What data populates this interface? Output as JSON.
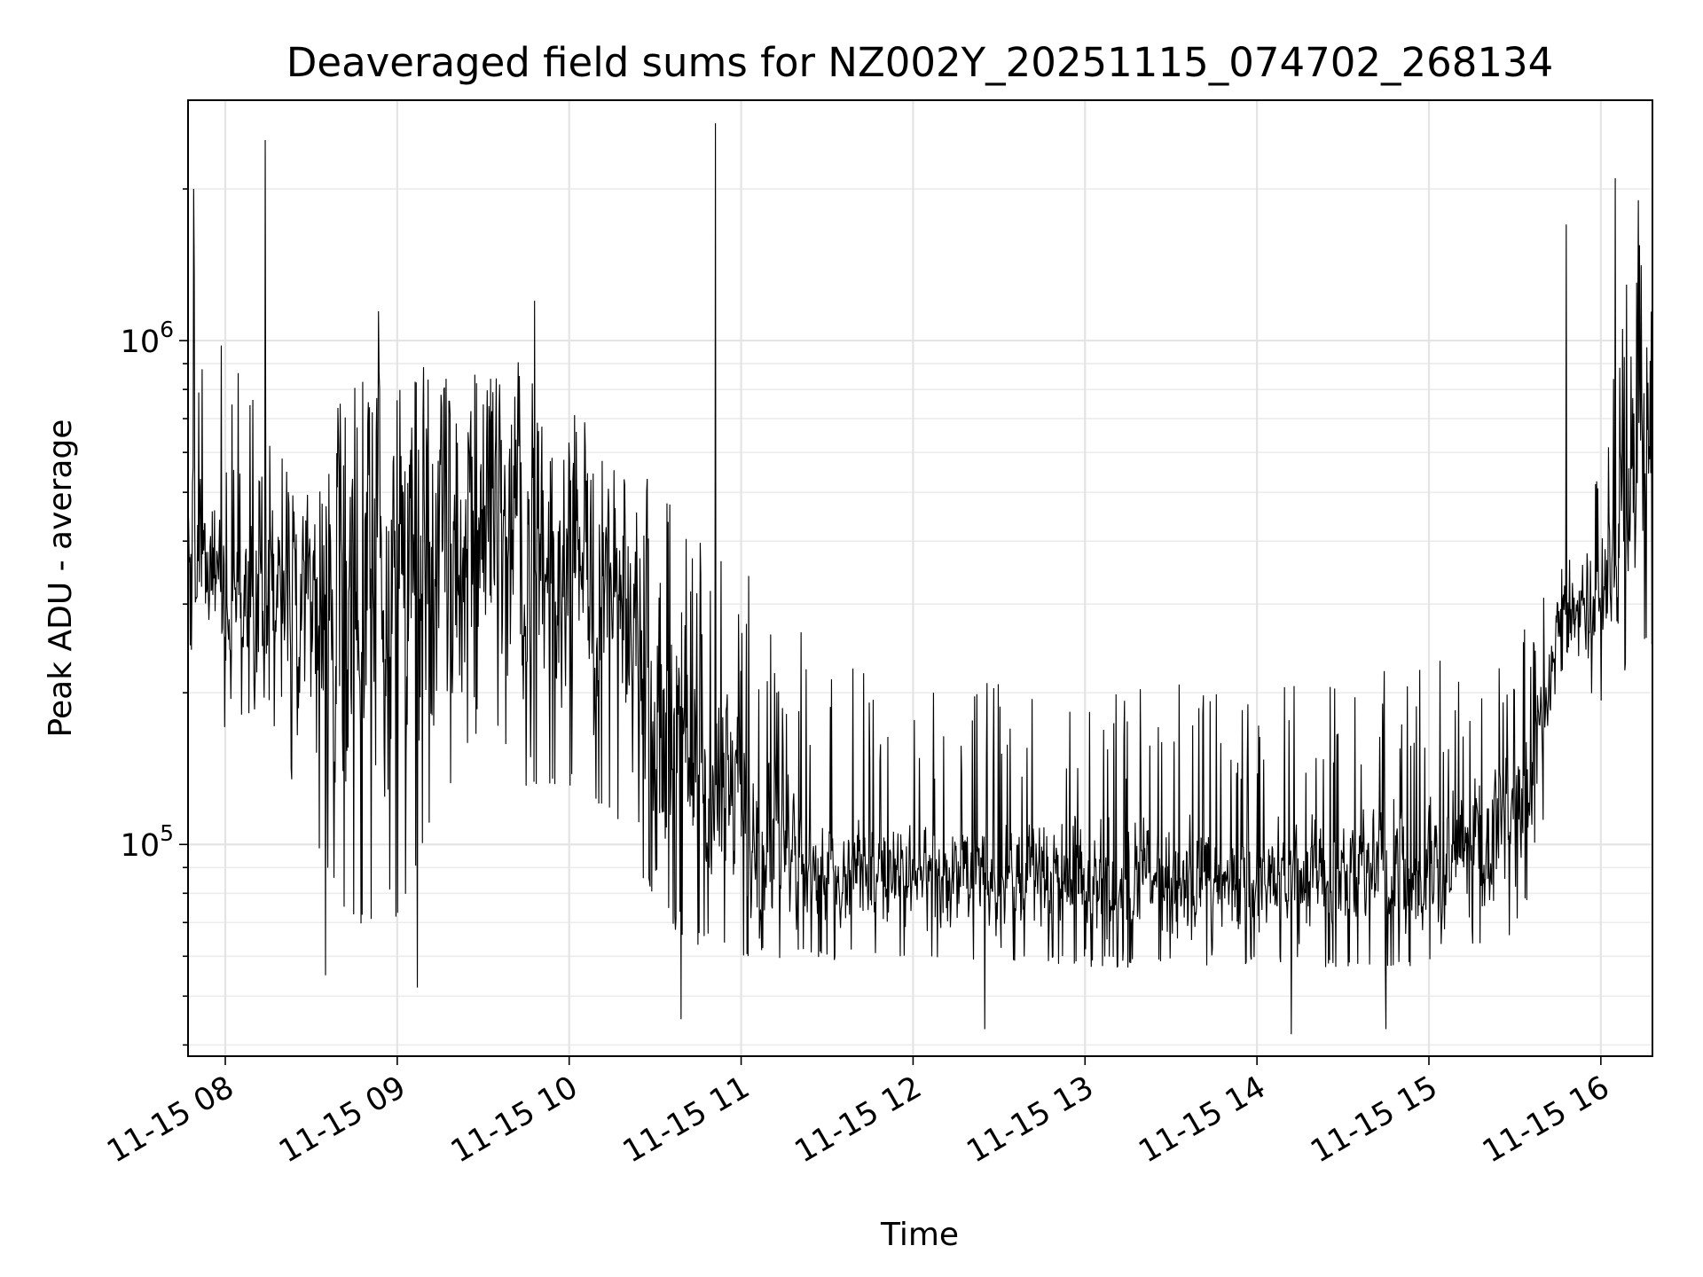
{
  "chart_data": {
    "type": "line",
    "title": "Deaveraged field sums for NZ002Y_20251115_074702_268134",
    "xlabel": "Time",
    "ylabel": "Peak ADU - average",
    "yscale": "log",
    "ylim": [
      38000,
      3000000
    ],
    "xlim": [
      "2025-11-15 07:47",
      "2025-11-15 16:18"
    ],
    "x_ticks": [
      {
        "t": "2025-11-15 08:00",
        "label": "11-15 08"
      },
      {
        "t": "2025-11-15 09:00",
        "label": "11-15 09"
      },
      {
        "t": "2025-11-15 10:00",
        "label": "11-15 10"
      },
      {
        "t": "2025-11-15 11:00",
        "label": "11-15 11"
      },
      {
        "t": "2025-11-15 12:00",
        "label": "11-15 12"
      },
      {
        "t": "2025-11-15 13:00",
        "label": "11-15 13"
      },
      {
        "t": "2025-11-15 14:00",
        "label": "11-15 14"
      },
      {
        "t": "2025-11-15 15:00",
        "label": "11-15 15"
      },
      {
        "t": "2025-11-15 16:00",
        "label": "11-15 16"
      }
    ],
    "y_ticks": [
      {
        "value": 100000,
        "base": "10",
        "exponent": "5"
      },
      {
        "value": 1000000,
        "base": "10",
        "exponent": "6"
      }
    ],
    "grid": true,
    "series_color": "#000000",
    "series": [
      {
        "profile": [
          {
            "t": "2025-11-15 07:47",
            "lo": 260000,
            "mid": 400000,
            "hi": 1400000
          },
          {
            "t": "2025-11-15 08:00",
            "lo": 180000,
            "mid": 300000,
            "hi": 800000
          },
          {
            "t": "2025-11-15 08:15",
            "lo": 200000,
            "mid": 330000,
            "hi": 600000
          },
          {
            "t": "2025-11-15 08:30",
            "lo": 110000,
            "mid": 260000,
            "hi": 520000
          },
          {
            "t": "2025-11-15 08:45",
            "lo": 75000,
            "mid": 280000,
            "hi": 700000
          },
          {
            "t": "2025-11-15 09:00",
            "lo": 85000,
            "mid": 330000,
            "hi": 700000
          },
          {
            "t": "2025-11-15 09:15",
            "lo": 130000,
            "mid": 380000,
            "hi": 750000
          },
          {
            "t": "2025-11-15 09:30",
            "lo": 200000,
            "mid": 480000,
            "hi": 780000
          },
          {
            "t": "2025-11-15 09:45",
            "lo": 150000,
            "mid": 380000,
            "hi": 700000
          },
          {
            "t": "2025-11-15 10:00",
            "lo": 150000,
            "mid": 370000,
            "hi": 650000
          },
          {
            "t": "2025-11-15 10:15",
            "lo": 130000,
            "mid": 300000,
            "hi": 550000
          },
          {
            "t": "2025-11-15 10:30",
            "lo": 80000,
            "mid": 200000,
            "hi": 450000
          },
          {
            "t": "2025-11-15 10:45",
            "lo": 70000,
            "mid": 140000,
            "hi": 350000
          },
          {
            "t": "2025-11-15 11:00",
            "lo": 65000,
            "mid": 120000,
            "hi": 300000
          },
          {
            "t": "2025-11-15 11:30",
            "lo": 62000,
            "mid": 90000,
            "hi": 200000
          },
          {
            "t": "2025-11-15 12:00",
            "lo": 62000,
            "mid": 85000,
            "hi": 180000
          },
          {
            "t": "2025-11-15 13:00",
            "lo": 60000,
            "mid": 85000,
            "hi": 180000
          },
          {
            "t": "2025-11-15 14:00",
            "lo": 60000,
            "mid": 85000,
            "hi": 180000
          },
          {
            "t": "2025-11-15 15:00",
            "lo": 60000,
            "mid": 90000,
            "hi": 200000
          },
          {
            "t": "2025-11-15 15:30",
            "lo": 70000,
            "mid": 110000,
            "hi": 250000
          },
          {
            "t": "2025-11-15 15:38",
            "lo": 90000,
            "mid": 150000,
            "hi": 300000
          },
          {
            "t": "2025-11-15 15:45",
            "lo": 230000,
            "mid": 280000,
            "hi": 340000
          },
          {
            "t": "2025-11-15 16:00",
            "lo": 200000,
            "mid": 300000,
            "hi": 500000
          },
          {
            "t": "2025-11-15 16:10",
            "lo": 250000,
            "mid": 500000,
            "hi": 1300000
          },
          {
            "t": "2025-11-15 16:18",
            "lo": 260000,
            "mid": 550000,
            "hi": 1400000
          }
        ],
        "sample_count": 2600,
        "notable_peaks": [
          {
            "t": "2025-11-15 07:49",
            "value": 2000000
          },
          {
            "t": "2025-11-15 08:14",
            "value": 2500000
          },
          {
            "t": "2025-11-15 09:48",
            "value": 1200000
          },
          {
            "t": "2025-11-15 10:51",
            "value": 2700000
          },
          {
            "t": "2025-11-15 15:48",
            "value": 1700000
          },
          {
            "t": "2025-11-15 16:05",
            "value": 2100000
          },
          {
            "t": "2025-11-15 16:13",
            "value": 1900000
          }
        ],
        "notable_dips": [
          {
            "t": "2025-11-15 08:35",
            "value": 55000
          },
          {
            "t": "2025-11-15 09:07",
            "value": 52000
          },
          {
            "t": "2025-11-15 10:39",
            "value": 45000
          },
          {
            "t": "2025-11-15 12:25",
            "value": 43000
          },
          {
            "t": "2025-11-15 14:12",
            "value": 42000
          },
          {
            "t": "2025-11-15 14:45",
            "value": 43000
          }
        ]
      }
    ]
  }
}
